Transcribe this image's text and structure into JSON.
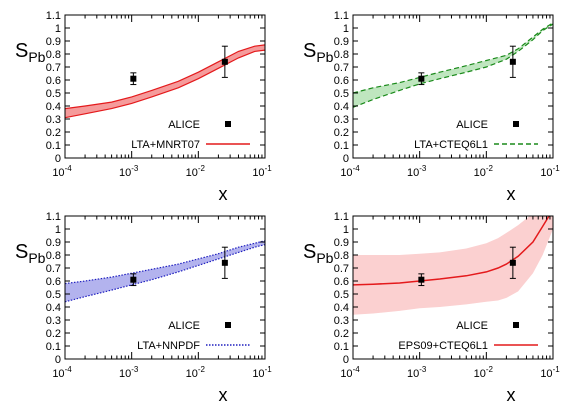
{
  "chart_data": [
    {
      "type": "area",
      "ylabel_main": "S",
      "ylabel_sub": "Pb",
      "xlabel": "x",
      "x_scale": "log",
      "xlim": [
        0.0001,
        0.1
      ],
      "ylim": [
        0,
        1.1
      ],
      "yticks": [
        "0",
        "0.1",
        "0.2",
        "0.3",
        "0.4",
        "0.5",
        "0.6",
        "0.7",
        "0.8",
        "0.9",
        "1",
        "1.1"
      ],
      "xticks": [
        {
          "base": "10",
          "exp": "-4"
        },
        {
          "base": "10",
          "exp": "-3"
        },
        {
          "base": "10",
          "exp": "-2"
        },
        {
          "base": "10",
          "exp": "-1"
        }
      ],
      "legend_placement": "bottom-right",
      "data_points": {
        "name": "ALICE",
        "x": [
          0.00106,
          0.025
        ],
        "y": [
          0.61,
          0.74
        ],
        "yerr": [
          0.045,
          0.12
        ]
      },
      "band": {
        "name": "LTA+MNRT07",
        "color": "#e41a1c",
        "fill": "#f59b9b",
        "style": "solid",
        "x": [
          0.0001,
          0.0002,
          0.0005,
          0.001,
          0.002,
          0.005,
          0.01,
          0.02,
          0.04,
          0.07,
          0.1
        ],
        "lower": [
          0.31,
          0.34,
          0.38,
          0.42,
          0.47,
          0.54,
          0.61,
          0.69,
          0.77,
          0.82,
          0.83
        ],
        "upper": [
          0.38,
          0.4,
          0.43,
          0.47,
          0.52,
          0.59,
          0.66,
          0.74,
          0.82,
          0.86,
          0.87
        ]
      }
    },
    {
      "type": "area",
      "ylabel_main": "S",
      "ylabel_sub": "Pb",
      "xlabel": "x",
      "x_scale": "log",
      "xlim": [
        0.0001,
        0.1
      ],
      "ylim": [
        0,
        1.1
      ],
      "yticks": [
        "0",
        "0.1",
        "0.2",
        "0.3",
        "0.4",
        "0.5",
        "0.6",
        "0.7",
        "0.8",
        "0.9",
        "1",
        "1.1"
      ],
      "xticks": [
        {
          "base": "10",
          "exp": "-4"
        },
        {
          "base": "10",
          "exp": "-3"
        },
        {
          "base": "10",
          "exp": "-2"
        },
        {
          "base": "10",
          "exp": "-1"
        }
      ],
      "legend_placement": "bottom-right",
      "data_points": {
        "name": "ALICE",
        "x": [
          0.00106,
          0.025
        ],
        "y": [
          0.61,
          0.74
        ],
        "yerr": [
          0.045,
          0.12
        ]
      },
      "band": {
        "name": "LTA+CTEQ6L1",
        "color": "#1a8a1a",
        "fill": "#bfe6bf",
        "style": "dashed",
        "x": [
          0.0001,
          0.0002,
          0.0005,
          0.001,
          0.002,
          0.005,
          0.01,
          0.02,
          0.03,
          0.05,
          0.07,
          0.1
        ],
        "lower": [
          0.39,
          0.45,
          0.52,
          0.57,
          0.61,
          0.66,
          0.7,
          0.76,
          0.82,
          0.91,
          0.98,
          1.03
        ],
        "upper": [
          0.5,
          0.54,
          0.58,
          0.62,
          0.66,
          0.71,
          0.75,
          0.79,
          0.84,
          0.93,
          0.99,
          1.04
        ]
      }
    },
    {
      "type": "area",
      "ylabel_main": "S",
      "ylabel_sub": "Pb",
      "xlabel": "x",
      "x_scale": "log",
      "xlim": [
        0.0001,
        0.1
      ],
      "ylim": [
        0,
        1.1
      ],
      "yticks": [
        "0",
        "0.1",
        "0.2",
        "0.3",
        "0.4",
        "0.5",
        "0.6",
        "0.7",
        "0.8",
        "0.9",
        "1",
        "1.1"
      ],
      "xticks": [
        {
          "base": "10",
          "exp": "-4"
        },
        {
          "base": "10",
          "exp": "-3"
        },
        {
          "base": "10",
          "exp": "-2"
        },
        {
          "base": "10",
          "exp": "-1"
        }
      ],
      "legend_placement": "bottom-right",
      "data_points": {
        "name": "ALICE",
        "x": [
          0.00106,
          0.025
        ],
        "y": [
          0.61,
          0.74
        ],
        "yerr": [
          0.045,
          0.12
        ]
      },
      "band": {
        "name": "LTA+NNPDF",
        "color": "#1f1fbf",
        "fill": "#b3b3ee",
        "style": "dotted",
        "x": [
          0.0001,
          0.0002,
          0.0005,
          0.001,
          0.002,
          0.005,
          0.01,
          0.02,
          0.04,
          0.07,
          0.1
        ],
        "lower": [
          0.44,
          0.48,
          0.53,
          0.57,
          0.61,
          0.67,
          0.72,
          0.77,
          0.82,
          0.86,
          0.88
        ],
        "upper": [
          0.58,
          0.6,
          0.63,
          0.66,
          0.69,
          0.73,
          0.77,
          0.81,
          0.86,
          0.89,
          0.91
        ]
      }
    },
    {
      "type": "area",
      "ylabel_main": "S",
      "ylabel_sub": "Pb",
      "xlabel": "x",
      "x_scale": "log",
      "xlim": [
        0.0001,
        0.1
      ],
      "ylim": [
        0,
        1.1
      ],
      "yticks": [
        "0",
        "0.1",
        "0.2",
        "0.3",
        "0.4",
        "0.5",
        "0.6",
        "0.7",
        "0.8",
        "0.9",
        "1",
        "1.1"
      ],
      "xticks": [
        {
          "base": "10",
          "exp": "-4"
        },
        {
          "base": "10",
          "exp": "-3"
        },
        {
          "base": "10",
          "exp": "-2"
        },
        {
          "base": "10",
          "exp": "-1"
        }
      ],
      "legend_placement": "bottom-right",
      "data_points": {
        "name": "ALICE",
        "x": [
          0.00106,
          0.025
        ],
        "y": [
          0.61,
          0.74
        ],
        "yerr": [
          0.045,
          0.12
        ]
      },
      "band": {
        "name": "EPS09+CTEQ6L1",
        "color": "#e41a1c",
        "fill": "#fbd0d0",
        "style": "solid",
        "x": [
          0.0001,
          0.0002,
          0.0005,
          0.001,
          0.002,
          0.005,
          0.01,
          0.015,
          0.02,
          0.03,
          0.05,
          0.07,
          0.1
        ],
        "lower": [
          0.34,
          0.35,
          0.37,
          0.39,
          0.4,
          0.42,
          0.44,
          0.45,
          0.47,
          0.52,
          0.66,
          0.8,
          1.0
        ],
        "upper": [
          0.8,
          0.8,
          0.8,
          0.81,
          0.82,
          0.85,
          0.89,
          0.93,
          0.97,
          1.03,
          1.12,
          1.2,
          1.28
        ],
        "central": [
          0.57,
          0.575,
          0.585,
          0.6,
          0.615,
          0.64,
          0.67,
          0.7,
          0.73,
          0.79,
          0.9,
          1.02,
          1.15
        ]
      }
    }
  ]
}
